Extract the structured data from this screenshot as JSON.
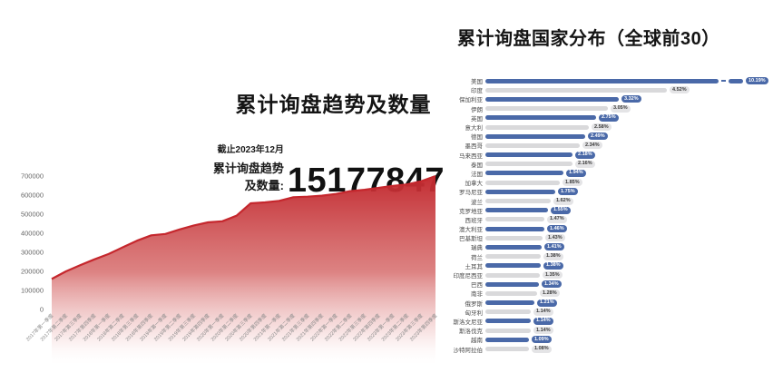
{
  "chart_data": [
    {
      "type": "area",
      "title": "累计询盘趋势及数量",
      "as_of": "截止2023年12月",
      "stat_label": "累计询盘趋势及数量:",
      "stat_value": "15177847",
      "x": [
        "2017年第一季度",
        "2017年第二季度",
        "2017年第三季度",
        "2017年第四季度",
        "2018年第一季度",
        "2018年第二季度",
        "2018年第三季度",
        "2018年第四季度",
        "2019年第一季度",
        "2019年第二季度",
        "2019年第三季度",
        "2019年第四季度",
        "2020年第一季度",
        "2020年第二季度",
        "2020年第三季度",
        "2020年第四季度",
        "2021年第一季度",
        "2021年第二季度",
        "2021年第三季度",
        "2021年第四季度",
        "2022年第一季度",
        "2022年第二季度",
        "2022年第三季度",
        "2022年第四季度",
        "2023年第一季度",
        "2023年第二季度",
        "2023年第三季度",
        "2023年第四季度"
      ],
      "values": [
        160000,
        200000,
        232000,
        263000,
        291000,
        326000,
        361000,
        389000,
        396000,
        420000,
        441000,
        457000,
        463000,
        492000,
        557000,
        562000,
        570000,
        589000,
        592000,
        597000,
        606000,
        621000,
        628000,
        638000,
        648000,
        656000,
        673000,
        700000
      ],
      "yticks": [
        0,
        100000,
        200000,
        300000,
        400000,
        500000,
        600000,
        700000
      ],
      "ylim": [
        0,
        700000
      ],
      "line_color": "#c5272d",
      "legend": "none",
      "grid": "off"
    },
    {
      "type": "bar",
      "orientation": "horizontal",
      "title": "累计询盘国家分布（全球前30）",
      "categories": [
        "美国",
        "印度",
        "保加利亚",
        "伊朗",
        "英国",
        "意大利",
        "德国",
        "墨西哥",
        "马来西亚",
        "泰国",
        "法国",
        "加拿大",
        "罗马尼亚",
        "波兰",
        "克罗地亚",
        "西班牙",
        "澳大利亚",
        "巴基斯坦",
        "瑞典",
        "荷兰",
        "土耳其",
        "印度尼西亚",
        "巴西",
        "南非",
        "俄罗斯",
        "匈牙利",
        "斯洛文尼亚",
        "斯洛伐克",
        "越南",
        "沙特阿拉伯"
      ],
      "values": [
        10.19,
        4.52,
        3.32,
        3.05,
        2.75,
        2.58,
        2.49,
        2.34,
        2.18,
        2.16,
        1.94,
        1.85,
        1.75,
        1.62,
        1.55,
        1.47,
        1.46,
        1.43,
        1.41,
        1.38,
        1.38,
        1.35,
        1.34,
        1.28,
        1.21,
        1.14,
        1.14,
        1.14,
        1.09,
        1.08
      ],
      "labels": [
        "10.19%",
        "4.52%",
        "3.32%",
        "3.05%",
        "2.75%",
        "2.58%",
        "2.49%",
        "2.34%",
        "2.18%",
        "2.16%",
        "1.94%",
        "1.85%",
        "1.75%",
        "1.62%",
        "1.55%",
        "1.47%",
        "1.46%",
        "1.43%",
        "1.41%",
        "1.38%",
        "1.38%",
        "1.35%",
        "1.34%",
        "1.28%",
        "1.21%",
        "1.14%",
        "1.14%",
        "1.14%",
        "1.09%",
        "1.08%"
      ],
      "bar_colors": {
        "odd_rows": "#4a69a8",
        "even_rows": "#d9d9db"
      },
      "axis_break_category": "美国",
      "legend": "none",
      "grid": "off"
    }
  ]
}
